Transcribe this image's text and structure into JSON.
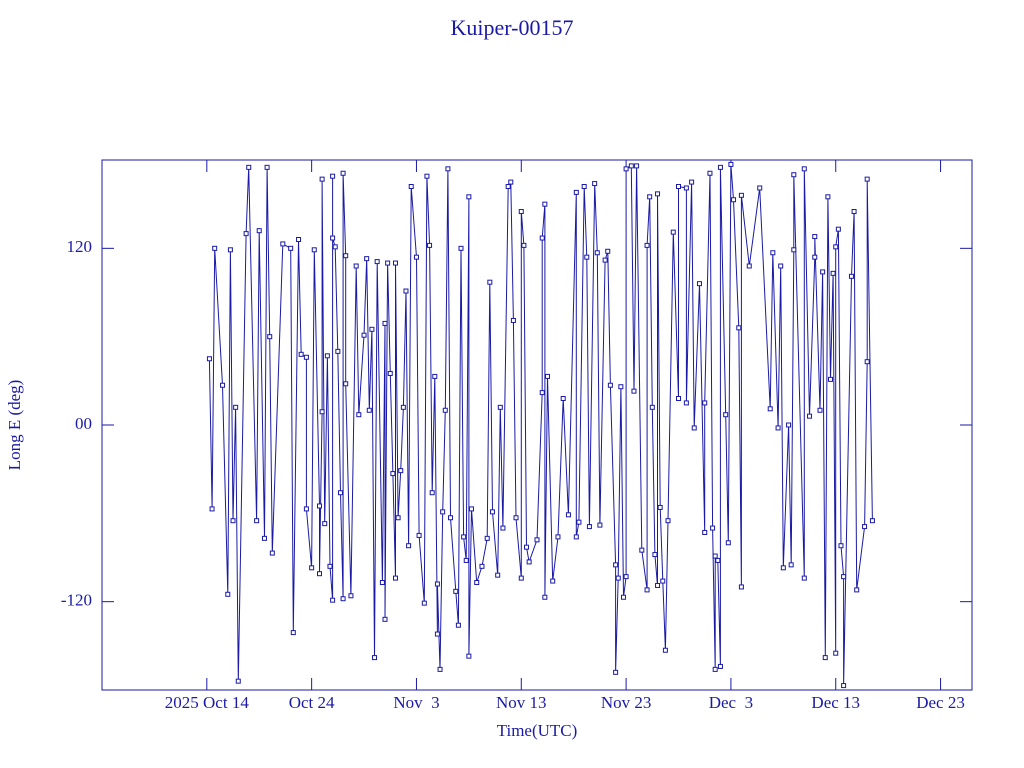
{
  "chart_data": {
    "type": "line",
    "title": "Kuiper-00157",
    "xlabel": "Time(UTC)",
    "ylabel": "Long E (deg)",
    "xlim": [
      "2025-10-04",
      "2025-12-26"
    ],
    "xticks": [
      {
        "value": "2025-10-14",
        "label": "2025 Oct 14"
      },
      {
        "value": "2025-10-24",
        "label": "Oct 24"
      },
      {
        "value": "2025-11-03",
        "label": "Nov  3"
      },
      {
        "value": "2025-11-13",
        "label": "Nov 13"
      },
      {
        "value": "2025-11-23",
        "label": "Nov 23"
      },
      {
        "value": "2025-12-03",
        "label": "Dec  3"
      },
      {
        "value": "2025-12-13",
        "label": "Dec 13"
      },
      {
        "value": "2025-12-23",
        "label": "Dec 23"
      }
    ],
    "ylim": [
      -180,
      180
    ],
    "yticks": [
      -120,
      {
        "value": 0,
        "label": "00"
      },
      120
    ],
    "x": [
      "2025-10-14 06:00",
      "2025-10-14 12:00",
      "2025-10-14 18:00",
      "2025-10-15 12:00",
      "2025-10-16 00:00",
      "2025-10-16 06:00",
      "2025-10-16 12:00",
      "2025-10-16 18:00",
      "2025-10-17 00:00",
      "2025-10-17 18:00",
      "2025-10-18 00:00",
      "2025-10-18 18:00",
      "2025-10-19 00:00",
      "2025-10-19 12:00",
      "2025-10-19 18:00",
      "2025-10-20 00:00",
      "2025-10-20 06:00",
      "2025-10-21 06:00",
      "2025-10-22 00:00",
      "2025-10-22 06:00",
      "2025-10-22 18:00",
      "2025-10-23 00:00",
      "2025-10-23 12:00",
      "2025-10-23 12:00",
      "2025-10-24 00:00",
      "2025-10-24 06:00",
      "2025-10-24 18:00",
      "2025-10-24 18:00",
      "2025-10-25 00:00",
      "2025-10-25 00:00",
      "2025-10-25 06:00",
      "2025-10-25 12:00",
      "2025-10-25 18:00",
      "2025-10-26 00:00",
      "2025-10-26 00:00",
      "2025-10-26 00:00",
      "2025-10-26 06:00",
      "2025-10-26 12:00",
      "2025-10-26 18:00",
      "2025-10-27 00:00",
      "2025-10-27 00:00",
      "2025-10-27 06:00",
      "2025-10-27 06:00",
      "2025-10-27 18:00",
      "2025-10-28 06:00",
      "2025-10-28 12:00",
      "2025-10-29 00:00",
      "2025-10-29 06:00",
      "2025-10-29 12:00",
      "2025-10-29 18:00",
      "2025-10-30 00:00",
      "2025-10-30 06:00",
      "2025-10-30 18:00",
      "2025-10-31 00:00",
      "2025-10-31 00:00",
      "2025-10-31 06:00",
      "2025-10-31 12:00",
      "2025-10-31 18:00",
      "2025-11-01 00:00",
      "2025-11-01 00:00",
      "2025-11-01 06:00",
      "2025-11-01 12:00",
      "2025-11-01 18:00",
      "2025-11-02 00:00",
      "2025-11-02 06:00",
      "2025-11-02 12:00",
      "2025-11-03 00:00",
      "2025-11-03 06:00",
      "2025-11-03 18:00",
      "2025-11-04 00:00",
      "2025-11-04 06:00",
      "2025-11-04 12:00",
      "2025-11-04 18:00",
      "2025-11-05 00:00",
      "2025-11-05 00:00",
      "2025-11-05 06:00",
      "2025-11-05 12:00",
      "2025-11-05 18:00",
      "2025-11-06 00:00",
      "2025-11-06 06:00",
      "2025-11-06 18:00",
      "2025-11-07 00:00",
      "2025-11-07 06:00",
      "2025-11-07 12:00",
      "2025-11-07 18:00",
      "2025-11-08 00:00",
      "2025-11-08 00:00",
      "2025-11-08 06:00",
      "2025-11-08 18:00",
      "2025-11-09 06:00",
      "2025-11-09 18:00",
      "2025-11-10 00:00",
      "2025-11-10 06:00",
      "2025-11-10 18:00",
      "2025-11-11 00:00",
      "2025-11-11 06:00",
      "2025-11-11 18:00",
      "2025-11-12 00:00",
      "2025-11-12 06:00",
      "2025-11-12 12:00",
      "2025-11-13 00:00",
      "2025-11-13 00:00",
      "2025-11-13 06:00",
      "2025-11-13 12:00",
      "2025-11-13 18:00",
      "2025-11-14 12:00",
      "2025-11-15 00:00",
      "2025-11-15 00:00",
      "2025-11-15 06:00",
      "2025-11-15 06:00",
      "2025-11-15 12:00",
      "2025-11-16 00:00",
      "2025-11-16 12:00",
      "2025-11-17 00:00",
      "2025-11-17 12:00",
      "2025-11-18 06:00",
      "2025-11-18 06:00",
      "2025-11-18 12:00",
      "2025-11-19 00:00",
      "2025-11-19 06:00",
      "2025-11-19 12:00",
      "2025-11-20 00:00",
      "2025-11-20 06:00",
      "2025-11-20 12:00",
      "2025-11-21 00:00",
      "2025-11-21 06:00",
      "2025-11-21 12:00",
      "2025-11-22 00:00",
      "2025-11-22 00:00",
      "2025-11-22 06:00",
      "2025-11-22 12:00",
      "2025-11-22 18:00",
      "2025-11-23 00:00",
      "2025-11-23 00:00",
      "2025-11-23 12:00",
      "2025-11-23 18:00",
      "2025-11-24 00:00",
      "2025-11-24 12:00",
      "2025-11-25 00:00",
      "2025-11-25 00:00",
      "2025-11-25 06:00",
      "2025-11-25 12:00",
      "2025-11-25 18:00",
      "2025-11-26 00:00",
      "2025-11-26 00:00",
      "2025-11-26 06:00",
      "2025-11-26 12:00",
      "2025-11-26 18:00",
      "2025-11-27 00:00",
      "2025-11-27 12:00",
      "2025-11-28 00:00",
      "2025-11-28 00:00",
      "2025-11-28 18:00",
      "2025-11-28 18:00",
      "2025-11-29 06:00",
      "2025-11-29 12:00",
      "2025-11-30 00:00",
      "2025-11-30 12:00",
      "2025-11-30 12:00",
      "2025-12-01 00:00",
      "2025-12-01 06:00",
      "2025-12-01 12:00",
      "2025-12-01 12:00",
      "2025-12-01 18:00",
      "2025-12-02 00:00",
      "2025-12-02 00:00",
      "2025-12-02 12:00",
      "2025-12-02 18:00",
      "2025-12-03 00:00",
      "2025-12-03 06:00",
      "2025-12-03 18:00",
      "2025-12-04 00:00",
      "2025-12-04 00:00",
      "2025-12-04 18:00",
      "2025-12-05 18:00",
      "2025-12-06 18:00",
      "2025-12-07 00:00",
      "2025-12-07 12:00",
      "2025-12-07 18:00",
      "2025-12-08 00:00",
      "2025-12-08 12:00",
      "2025-12-08 18:00",
      "2025-12-09 00:00",
      "2025-12-09 00:00",
      "2025-12-10 00:00",
      "2025-12-10 00:00",
      "2025-12-10 12:00",
      "2025-12-11 00:00",
      "2025-12-11 00:00",
      "2025-12-11 12:00",
      "2025-12-11 18:00",
      "2025-12-12 00:00",
      "2025-12-12 06:00",
      "2025-12-12 12:00",
      "2025-12-12 18:00",
      "2025-12-13 00:00",
      "2025-12-13 00:00",
      "2025-12-13 06:00",
      "2025-12-13 12:00",
      "2025-12-13 18:00",
      "2025-12-13 18:00",
      "2025-12-14 12:00",
      "2025-12-14 18:00",
      "2025-12-15 00:00",
      "2025-12-15 18:00",
      "2025-12-16 00:00",
      "2025-12-16 00:00",
      "2025-12-16 12:00"
    ],
    "series": [
      {
        "color": "#1a1aa6",
        "values": [
          45,
          -57,
          120,
          27,
          -115,
          119,
          -65,
          12,
          -174,
          130,
          175,
          -65,
          132,
          -77,
          175,
          60,
          -87,
          123,
          120,
          -141,
          126,
          48,
          46,
          -57,
          -97,
          119,
          -55,
          -101,
          9,
          167,
          -67,
          47,
          -96,
          -119,
          169,
          127,
          121,
          50,
          -46,
          -118,
          171,
          115,
          28,
          -116,
          108,
          7,
          61,
          113,
          10,
          65,
          -158,
          111,
          -107,
          69,
          -132,
          110,
          35,
          -33,
          -104,
          110,
          -63,
          -31,
          12,
          91,
          -82,
          162,
          114,
          -75,
          -121,
          169,
          122,
          -46,
          33,
          -142,
          -108,
          -166,
          -59,
          10,
          174,
          -63,
          -113,
          -136,
          120,
          -76,
          -92,
          155,
          -157,
          -57,
          -107,
          -96,
          -77,
          97,
          -59,
          -102,
          12,
          -70,
          162,
          165,
          71,
          -63,
          -104,
          145,
          122,
          -83,
          -93,
          -78,
          22,
          127,
          150,
          -117,
          33,
          -106,
          -76,
          18,
          -61,
          158,
          -76,
          -66,
          162,
          114,
          -69,
          164,
          117,
          -68,
          112,
          118,
          27,
          -95,
          -168,
          -104,
          26,
          -117,
          -103,
          174,
          176,
          23,
          176,
          -85,
          -112,
          122,
          155,
          12,
          -88,
          -109,
          157,
          -56,
          -106,
          -153,
          -65,
          131,
          18,
          162,
          161,
          15,
          165,
          -2,
          96,
          -73,
          15,
          171,
          -70,
          -166,
          -89,
          -92,
          -164,
          175,
          7,
          -80,
          177,
          153,
          66,
          -110,
          156,
          108,
          161,
          11,
          117,
          -2,
          108,
          -97,
          0,
          -95,
          119,
          170,
          -104,
          174,
          6,
          114,
          128,
          10,
          104,
          -158,
          155,
          31,
          103,
          -155,
          121,
          133,
          -82,
          -103,
          -177,
          101,
          145,
          -112,
          -69,
          43,
          167,
          -65
        ]
      }
    ]
  }
}
